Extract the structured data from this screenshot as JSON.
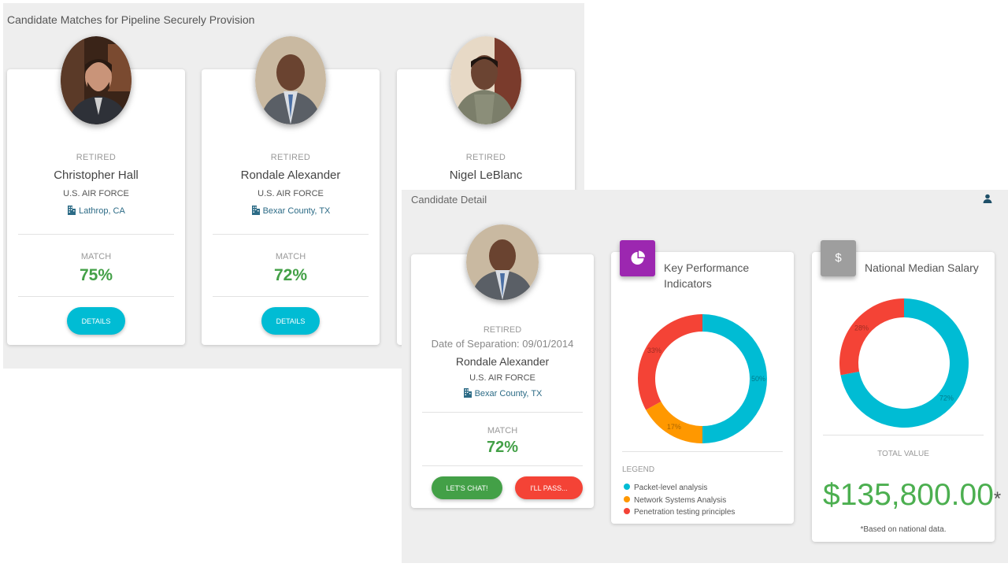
{
  "matches": {
    "title": "Candidate Matches for Pipeline Securely Provision",
    "cards": [
      {
        "status": "RETIRED",
        "name": "Christopher Hall",
        "branch": "U.S. AIR FORCE",
        "location": "Lathrop, CA",
        "match_label": "MATCH",
        "match_pct": "75%",
        "button": "DETAILS"
      },
      {
        "status": "RETIRED",
        "name": "Rondale Alexander",
        "branch": "U.S. AIR FORCE",
        "location": "Bexar County, TX",
        "match_label": "MATCH",
        "match_pct": "72%",
        "button": "DETAILS"
      },
      {
        "status": "RETIRED",
        "name": "Nigel LeBlanc"
      }
    ]
  },
  "detail": {
    "title": "Candidate Detail",
    "profile": {
      "status": "RETIRED",
      "separation": "Date of Separation: 09/01/2014",
      "name": "Rondale Alexander",
      "branch": "U.S. AIR FORCE",
      "location": "Bexar County, TX",
      "match_label": "MATCH",
      "match_pct": "72%",
      "chat_button": "LET'S CHAT!",
      "pass_button": "I'LL PASS..."
    },
    "kpi": {
      "title_line1": "Key Performance",
      "title_line2": "Indicators",
      "legend_title": "LEGEND",
      "legend": [
        {
          "label": "Packet-level analysis",
          "color": "#00bcd4"
        },
        {
          "label": "Network Systems Analysis",
          "color": "#ff9800"
        },
        {
          "label": "Penetration testing principles",
          "color": "#f44336"
        }
      ]
    },
    "salary": {
      "title": "National Median Salary",
      "tile_symbol": "$",
      "total_label": "TOTAL VALUE",
      "value": "$135,800.00",
      "star": "*",
      "note": "*Based on national data."
    }
  },
  "colors": {
    "accent_cyan": "#00bcd4",
    "success_green": "#43a047",
    "danger_red": "#f44336",
    "kpi_tile_purple": "#9c27b0",
    "salary_tile_grey": "#9e9e9e"
  },
  "chart_data": [
    {
      "type": "pie",
      "variant": "donut",
      "categories": [
        "Packet-level analysis",
        "Network Systems Analysis",
        "Penetration testing principles"
      ],
      "values": [
        50,
        17,
        33
      ],
      "labels": [
        "50%",
        "17%",
        "33%"
      ],
      "colors": [
        "#00bcd4",
        "#ff9800",
        "#f44336"
      ],
      "legend": "bottom"
    },
    {
      "type": "pie",
      "variant": "donut",
      "values": [
        72,
        28
      ],
      "labels": [
        "72%",
        "28%"
      ],
      "colors": [
        "#00bcd4",
        "#f44336"
      ]
    }
  ]
}
